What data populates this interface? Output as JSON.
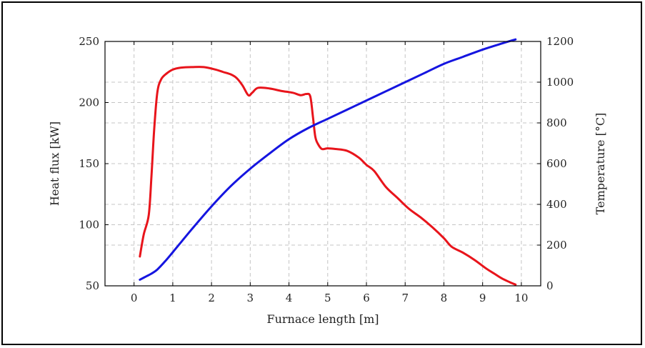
{
  "chart_data": {
    "type": "line",
    "xlabel": "Furnace length [m]",
    "ylabel": "Heat flux [kW]",
    "y2label": "Temperature [°C]",
    "xlim": [
      -0.75,
      10.5
    ],
    "ylim": [
      50,
      250
    ],
    "y2lim": [
      0,
      1200
    ],
    "xticks": [
      0,
      1,
      2,
      3,
      4,
      5,
      6,
      7,
      8,
      9,
      10
    ],
    "yticks": [
      50,
      100,
      150,
      200,
      250
    ],
    "y2ticks": [
      0,
      200,
      400,
      600,
      800,
      1000,
      1200
    ],
    "grid": true,
    "series": [
      {
        "color": "#e8141b",
        "axis": "left",
        "x": [
          0.15,
          0.25,
          0.38,
          0.45,
          0.52,
          0.6,
          0.7,
          0.85,
          1.0,
          1.2,
          1.5,
          1.8,
          2.1,
          2.3,
          2.5,
          2.65,
          2.8,
          2.95,
          3.05,
          3.2,
          3.5,
          3.8,
          4.1,
          4.3,
          4.45,
          4.55,
          4.62,
          4.68,
          4.75,
          4.85,
          5.0,
          5.2,
          5.5,
          5.8,
          6.0,
          6.2,
          6.5,
          6.8,
          7.1,
          7.4,
          7.7,
          8.0,
          8.2,
          8.5,
          8.8,
          9.1,
          9.3,
          9.5,
          9.7,
          9.85
        ],
        "y": [
          74,
          92,
          108,
          140,
          178,
          208,
          219,
          224,
          227,
          228.5,
          229,
          229,
          227,
          225,
          223,
          220,
          214,
          206,
          208,
          212,
          211.5,
          209.5,
          208,
          206,
          207,
          205,
          188,
          172,
          166,
          162,
          162.5,
          162,
          160.5,
          155,
          149,
          144,
          131,
          122,
          113,
          106,
          98,
          89,
          82,
          77,
          71,
          64,
          60,
          56,
          53,
          51
        ]
      },
      {
        "color": "#1515e0",
        "axis": "right",
        "x": [
          0.15,
          0.3,
          0.45,
          0.6,
          0.8,
          1.0,
          1.5,
          2.0,
          2.5,
          3.0,
          3.5,
          4.0,
          4.5,
          5.0,
          5.5,
          6.0,
          6.5,
          7.0,
          7.5,
          8.0,
          8.5,
          9.0,
          9.5,
          9.85
        ],
        "y": [
          30,
          45,
          60,
          80,
          120,
          165,
          280,
          390,
          490,
          575,
          650,
          720,
          775,
          820,
          865,
          910,
          955,
          1000,
          1045,
          1090,
          1125,
          1160,
          1190,
          1210
        ]
      }
    ]
  }
}
